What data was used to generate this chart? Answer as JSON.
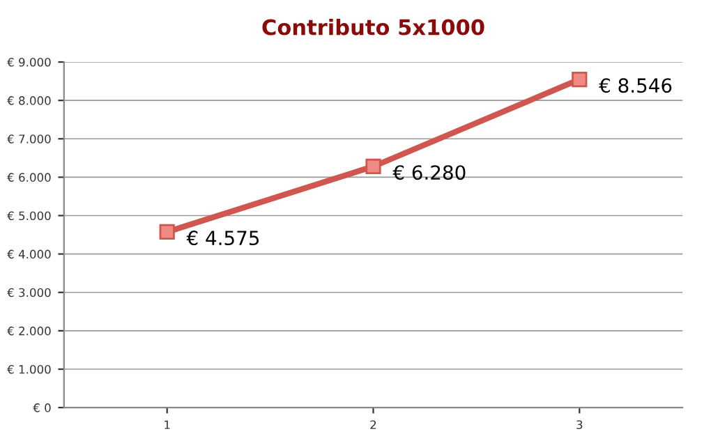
{
  "chart_data": {
    "type": "line",
    "title": "Contributo 5x1000",
    "categories": [
      "1",
      "2",
      "3"
    ],
    "series": [
      {
        "color": "#d0574f",
        "values": [
          4575,
          6280,
          8546
        ],
        "value_labels": [
          "€ 4.575",
          "€ 6.280",
          "€ 8.546"
        ]
      }
    ],
    "ylim": [
      0,
      9000
    ],
    "yticks": [
      {
        "value": 0,
        "label": "€ 0"
      },
      {
        "value": 1000,
        "label": "€ 1.000"
      },
      {
        "value": 2000,
        "label": "€ 2.000"
      },
      {
        "value": 3000,
        "label": "€ 3.000"
      },
      {
        "value": 4000,
        "label": "€ 4.000"
      },
      {
        "value": 5000,
        "label": "€ 5.000"
      },
      {
        "value": 6000,
        "label": "€ 6.000"
      },
      {
        "value": 7000,
        "label": "€ 7.000"
      },
      {
        "value": 8000,
        "label": "€ 8.000"
      },
      {
        "value": 9000,
        "label": "€ 9.000"
      }
    ],
    "grid": "y",
    "marker": "square",
    "line_style": "solid"
  }
}
